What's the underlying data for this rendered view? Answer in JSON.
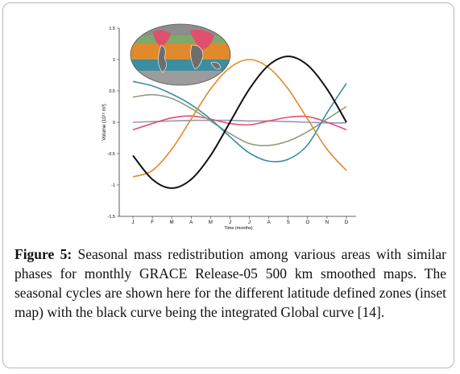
{
  "chart_data": {
    "type": "line",
    "y_label": "Volume (10¹⁵ m³)",
    "x_label": "Time (months)",
    "categories": [
      "J",
      "F",
      "M",
      "A",
      "M",
      "J",
      "J",
      "A",
      "S",
      "O",
      "N",
      "D"
    ],
    "ylim": [
      -1.5,
      1.5
    ],
    "yticks": [
      -1.5,
      -1,
      -0.5,
      0,
      0.5,
      1,
      1.5
    ],
    "series": [
      {
        "color": "#9a92bd",
        "values": [
          0.0,
          0.01,
          0.02,
          0.03,
          0.03,
          0.03,
          0.02,
          0.02,
          0.01,
          0.0,
          -0.01,
          -0.01
        ]
      },
      {
        "color": "#e0506e",
        "values": [
          -0.12,
          -0.02,
          0.07,
          0.1,
          0.05,
          -0.02,
          -0.04,
          0.02,
          0.08,
          0.09,
          0.0,
          -0.12
        ]
      },
      {
        "color": "#8c9c7c",
        "values": [
          0.4,
          0.44,
          0.38,
          0.22,
          0.02,
          -0.18,
          -0.34,
          -0.37,
          -0.3,
          -0.15,
          0.05,
          0.25
        ]
      },
      {
        "color": "#3a8ea0",
        "values": [
          0.65,
          0.58,
          0.45,
          0.28,
          0.05,
          -0.23,
          -0.49,
          -0.62,
          -0.59,
          -0.36,
          0.15,
          0.62
        ]
      },
      {
        "color": "#e08a2c",
        "values": [
          -0.87,
          -0.77,
          -0.43,
          0.05,
          0.53,
          0.87,
          1.0,
          0.87,
          0.53,
          0.05,
          -0.43,
          -0.77
        ]
      },
      {
        "color": "#111111",
        "values": [
          -0.53,
          -0.91,
          -1.05,
          -0.91,
          -0.53,
          0.0,
          0.53,
          0.91,
          1.05,
          0.91,
          0.53,
          0.0
        ]
      }
    ]
  },
  "caption": {
    "label": "Figure 5:",
    "text": " Seasonal mass redistribution among various areas with similar phases for monthly GRACE Release-05 500 km smoothed maps. The seasonal cycles are shown here for the different latitude defined zones (inset map) with the black curve being the integrated Global curve [14]."
  }
}
